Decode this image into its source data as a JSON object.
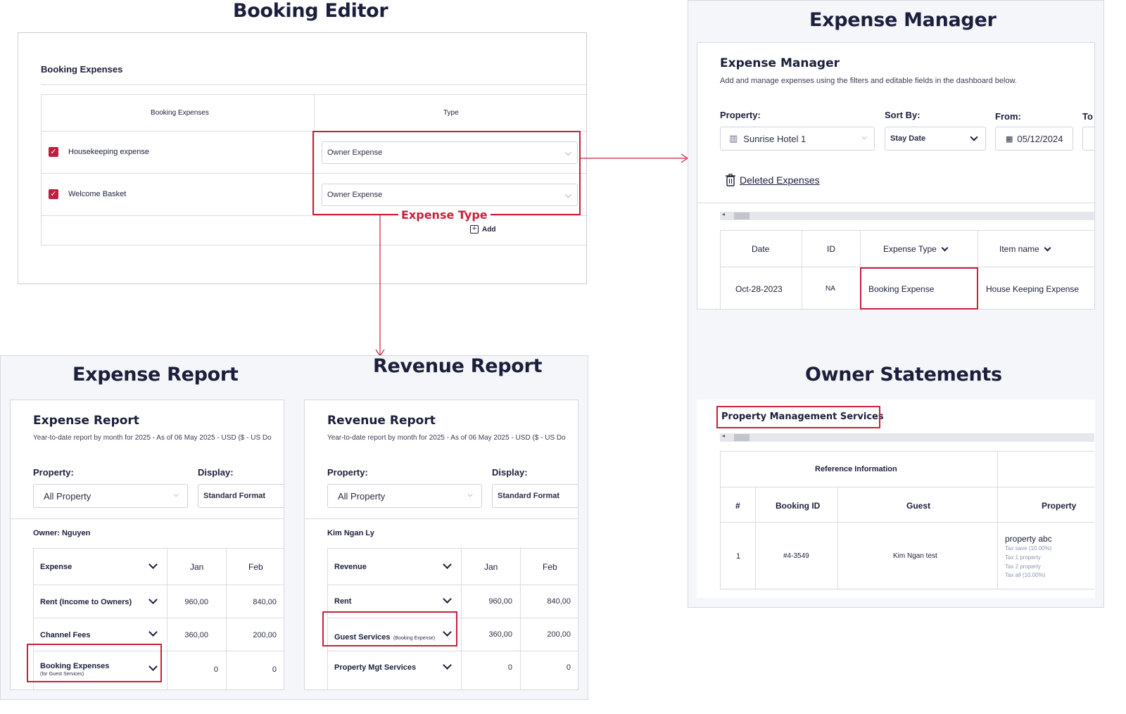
{
  "booking_editor": {
    "title": "Booking Editor",
    "section_title": "Booking Expenses",
    "col_expenses": "Booking Expenses",
    "col_type": "Type",
    "rows": [
      {
        "name": "Housekeeping expense",
        "type": "Owner Expense",
        "checked": true
      },
      {
        "name": "Welcome Basket",
        "type": "Owner Expense",
        "checked": true
      }
    ],
    "add_label": "Add",
    "annotation": "Expense Type"
  },
  "expense_manager": {
    "title": "Expense Manager",
    "card_title": "Expense Manager",
    "description": "Add and manage expenses using the filters and editable fields in the dashboard below.",
    "property_label": "Property:",
    "property_value": "Sunrise Hotel 1",
    "sort_label": "Sort By:",
    "sort_value": "Stay Date",
    "from_label": "From:",
    "from_value": "05/12/2024",
    "to_label": "To",
    "deleted_link": "Deleted Expenses",
    "columns": [
      "Date",
      "ID",
      "Expense Type",
      "Item name"
    ],
    "row": {
      "date": "Oct-28-2023",
      "id": "NA",
      "expense_type": "Booking Expense",
      "item_name": "House Keeping Expense"
    }
  },
  "expense_report": {
    "title": "Expense Report",
    "card_title": "Expense Report",
    "subtitle": "Year-to-date report by month for 2025 - As of 06 May 2025 - USD ($ - US Do",
    "property_label": "Property:",
    "property_value": "All Property",
    "display_label": "Display:",
    "display_value": "Standard Format",
    "owner": "Owner: Nguyen",
    "col_head": "Expense",
    "months": [
      "Jan",
      "Feb"
    ],
    "rows": [
      {
        "label": "Rent (Income to Owners)",
        "sub": "",
        "jan": "960,00",
        "feb": "840,00"
      },
      {
        "label": "Channel Fees",
        "sub": "",
        "jan": "360,00",
        "feb": "200,00"
      },
      {
        "label": "Booking Expenses",
        "sub": "(for Guest Services)",
        "jan": "0",
        "feb": "0"
      }
    ]
  },
  "revenue_report": {
    "title": "Revenue Report",
    "card_title": "Revenue Report",
    "subtitle": "Year-to-date report by month for 2025 - As of 06 May 2025 - USD ($ - US Do",
    "property_label": "Property:",
    "property_value": "All Property",
    "display_label": "Display:",
    "display_value": "Standard Format",
    "owner": "Kim Ngan Ly",
    "col_head": "Revenue",
    "months": [
      "Jan",
      "Feb"
    ],
    "rows": [
      {
        "label": "Rent",
        "sub": "",
        "jan": "960,00",
        "feb": "840,00"
      },
      {
        "label": "Guest Services",
        "sub": "(Booking Expense)",
        "jan": "360,00",
        "feb": "200,00"
      },
      {
        "label": "Property Mgt Services",
        "sub": "",
        "jan": "0",
        "feb": "0"
      }
    ]
  },
  "owner_statements": {
    "title": "Owner Statements",
    "section_title": "Property Management Services",
    "group_header": "Reference Information",
    "columns": [
      "#",
      "Booking ID",
      "Guest",
      "Property"
    ],
    "row": {
      "num": "1",
      "booking_id": "#4-3549",
      "guest": "Kim Ngan test",
      "property": "property abc",
      "taxes": [
        "Tax save (10.00%)",
        "Tax 1 property",
        "Tax 2 property",
        "Tax all (10.00%)"
      ]
    }
  },
  "colors": {
    "accent": "#c8203c",
    "navy": "#1b1f3b",
    "panel_bg": "#f5f6fa"
  }
}
